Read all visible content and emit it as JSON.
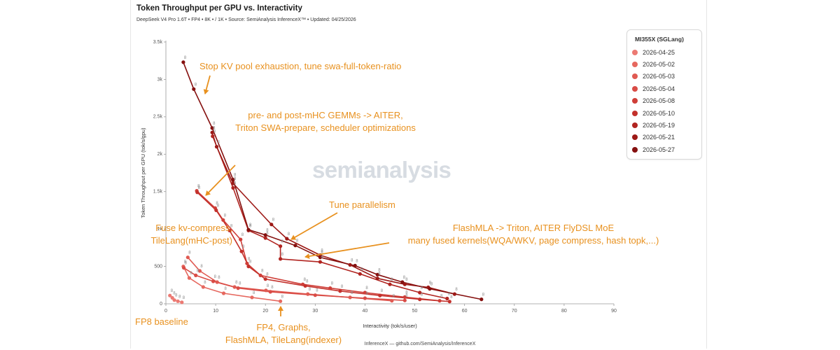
{
  "chart_data": {
    "type": "line",
    "title": "Token Throughput per GPU vs. Interactivity",
    "subtitle": "DeepSeek V4 Pro 1.6T • FP4 • 8K • / 1K • Source: SemiAnalysis InferenceX™ • Updated: 04/25/2026",
    "xlabel": "Interactivity (tok/s/user)",
    "ylabel": "Token Throughput per GPU (tok/s/gpu)",
    "xlim": [
      0,
      90
    ],
    "ylim": [
      0,
      3500
    ],
    "x_ticks": [
      0,
      10,
      20,
      30,
      40,
      50,
      60,
      70,
      80,
      90
    ],
    "y_ticks": [
      0,
      500,
      1000,
      1500,
      2000,
      2500,
      3000,
      3500
    ],
    "y_tick_labels": [
      "0",
      "500",
      "1k",
      "1.5k",
      "2k",
      "2.5k",
      "3k",
      "3.5k"
    ],
    "grid": false,
    "legend": {
      "title": "MI355X (SGLang)",
      "placement": "right"
    },
    "point_label": "8",
    "series": [
      {
        "name": "2026-04-25",
        "color": "#ec7a73",
        "points": [
          [
            0.8,
            110
          ],
          [
            1.3,
            80
          ],
          [
            1.7,
            50
          ],
          [
            2.4,
            35
          ],
          [
            3.2,
            20
          ]
        ]
      },
      {
        "name": "2026-05-02",
        "color": "#e6685f",
        "points": [
          [
            3.5,
            500
          ],
          [
            4.7,
            345
          ],
          [
            7.5,
            225
          ],
          [
            11.6,
            140
          ],
          [
            17.3,
            85
          ],
          [
            23.0,
            35
          ]
        ]
      },
      {
        "name": "2026-05-03",
        "color": "#e05a52",
        "points": [
          [
            4.4,
            620
          ],
          [
            6.8,
            440
          ],
          [
            10.3,
            290
          ],
          [
            13.8,
            225
          ],
          [
            20.1,
            180
          ],
          [
            28.5,
            130
          ],
          [
            37.0,
            85
          ],
          [
            45.4,
            40
          ]
        ]
      },
      {
        "name": "2026-05-04",
        "color": "#d94c46",
        "points": [
          [
            3.6,
            480
          ],
          [
            6.0,
            380
          ],
          [
            9.5,
            300
          ],
          [
            14.5,
            210
          ],
          [
            21.0,
            160
          ],
          [
            30.0,
            115
          ],
          [
            40.0,
            75
          ],
          [
            48.0,
            45
          ]
        ]
      },
      {
        "name": "2026-05-08",
        "color": "#cf3e38",
        "points": [
          [
            6.2,
            1510
          ],
          [
            9.9,
            1280
          ],
          [
            11.5,
            1120
          ],
          [
            15.0,
            860
          ],
          [
            16.3,
            540
          ],
          [
            19.0,
            380
          ],
          [
            27.5,
            260
          ],
          [
            33.0,
            210
          ],
          [
            40.0,
            150
          ],
          [
            48.0,
            90
          ],
          [
            55.0,
            40
          ]
        ]
      },
      {
        "name": "2026-05-10",
        "color": "#c3312c",
        "points": [
          [
            6.3,
            1490
          ],
          [
            10.1,
            1250
          ],
          [
            12.8,
            980
          ],
          [
            15.2,
            700
          ],
          [
            16.6,
            500
          ],
          [
            20.0,
            330
          ],
          [
            28.0,
            240
          ],
          [
            35.0,
            170
          ],
          [
            43.0,
            110
          ],
          [
            51.0,
            60
          ],
          [
            57.0,
            30
          ]
        ]
      },
      {
        "name": "2026-05-19",
        "color": "#b12420",
        "points": [
          [
            9.4,
            2240
          ],
          [
            13.5,
            1550
          ],
          [
            16.6,
            980
          ],
          [
            20.0,
            880
          ],
          [
            23.0,
            770
          ],
          [
            23.0,
            600
          ],
          [
            31.0,
            560
          ],
          [
            39.0,
            400
          ],
          [
            45.0,
            260
          ],
          [
            51.0,
            150
          ],
          [
            56.5,
            70
          ]
        ]
      },
      {
        "name": "2026-05-21",
        "color": "#9d1916",
        "points": [
          [
            9.3,
            2290
          ],
          [
            10.2,
            2100
          ],
          [
            13.5,
            1610
          ],
          [
            21.2,
            1060
          ],
          [
            24.3,
            870
          ],
          [
            31.0,
            650
          ],
          [
            37.0,
            520
          ],
          [
            42.5,
            340
          ],
          [
            48.0,
            260
          ],
          [
            52.7,
            220
          ],
          [
            58.0,
            130
          ]
        ]
      },
      {
        "name": "2026-05-27",
        "color": "#85100f",
        "points": [
          [
            3.5,
            3230
          ],
          [
            5.6,
            2870
          ],
          [
            9.3,
            2350
          ],
          [
            13.5,
            1660
          ],
          [
            16.6,
            990
          ],
          [
            20.0,
            920
          ],
          [
            26.0,
            780
          ],
          [
            31.0,
            620
          ],
          [
            38.0,
            510
          ],
          [
            42.5,
            390
          ],
          [
            47.5,
            290
          ],
          [
            53.0,
            200
          ],
          [
            63.4,
            60
          ]
        ]
      }
    ],
    "annotation_color": "#e8911f",
    "annotations": [
      {
        "lines": [
          "Stop KV pool exhaustion, tune swa-full-token-ratio"
        ]
      },
      {
        "lines": [
          "pre- and post-mHC GEMMs -> AITER,",
          "Triton SWA-prepare, scheduler optimizations"
        ]
      },
      {
        "lines": [
          "Tune parallelism"
        ]
      },
      {
        "lines": [
          "FlashMLA -> Triton, AITER FlyDSL MoE",
          "many fused kernels(WQA/WKV, page compress, hash topk,...)"
        ]
      },
      {
        "lines": [
          "Fuse kv-compress,",
          "TileLang(mHC-post)"
        ]
      },
      {
        "lines": [
          "FP8 baseline"
        ]
      },
      {
        "lines": [
          "FP4, Graphs,",
          "FlashMLA, TileLang(indexer)"
        ]
      }
    ]
  },
  "watermark": "semianalysis",
  "footer": "InferenceX — github.com/SemiAnalysis/InferenceX"
}
